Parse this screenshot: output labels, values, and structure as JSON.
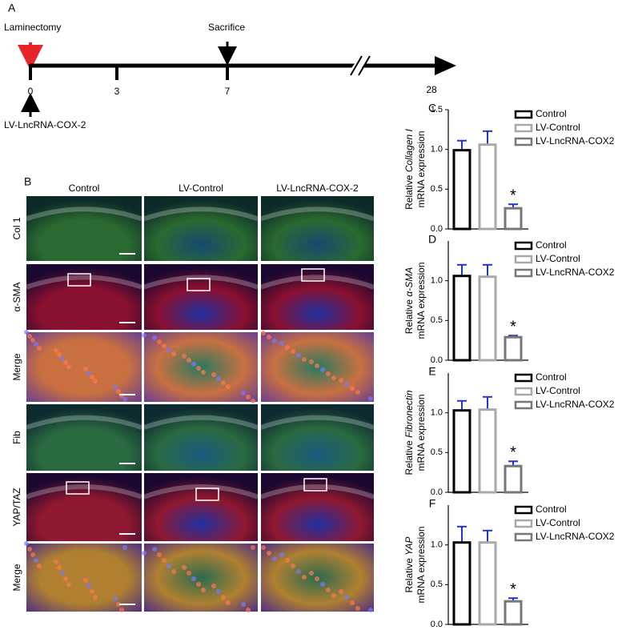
{
  "panel_a": {
    "label": "A",
    "laminectomy": "Laminectomy",
    "sacrifice": "Sacrifice",
    "treatment": "LV-LncRNA-COX-2",
    "timepoints": [
      "0",
      "3",
      "7",
      "28"
    ]
  },
  "panel_b": {
    "label": "B",
    "columns": [
      "Control",
      "LV-Control",
      "LV-LncRNA-COX-2"
    ],
    "rows": [
      {
        "text": "Col 1",
        "color": "#2fb52f"
      },
      {
        "text": "α-SMA",
        "color": "#e8242b"
      },
      {
        "text": "Merge",
        "color": "#f0b400"
      },
      {
        "text": "Fib",
        "color": "#2fb52f"
      },
      {
        "text": "YAP/TAZ",
        "color": "#e8242b"
      },
      {
        "text": "Merge",
        "color": "#f0b400"
      }
    ]
  },
  "chart_data": [
    {
      "type": "bar",
      "label": "C",
      "ylabel": {
        "prefix": "Relative",
        "gene": "Collagen I",
        "suffix": "mRNA expression"
      },
      "ylim": [
        0,
        1.5
      ],
      "yticks": [
        {
          "value": 0,
          "label": "0.0"
        },
        0.5,
        {
          "value": 1,
          "label": "1.0"
        },
        1.5
      ],
      "annotation": "*",
      "series": [
        {
          "name": "Control",
          "color": "#000000",
          "values": [
            0.99
          ],
          "errors": [
            0.12
          ]
        },
        {
          "name": "LV-Control",
          "color": "#a8a8a8",
          "values": [
            1.06
          ],
          "errors": [
            0.17
          ]
        },
        {
          "name": "LV-LncRNA-COX2",
          "color": "#777777",
          "values": [
            0.26
          ],
          "errors": [
            0.05
          ]
        }
      ]
    },
    {
      "type": "bar",
      "label": "D",
      "ylabel": {
        "prefix": "Relative",
        "gene": "α-SMA",
        "suffix": "mRNA expression"
      },
      "ylim": [
        0,
        1.5
      ],
      "yticks": [
        {
          "value": 0,
          "label": "0.0"
        },
        0.5,
        {
          "value": 1,
          "label": "1.0"
        }
      ],
      "annotation": "*",
      "series": [
        {
          "name": "Control",
          "color": "#000000",
          "values": [
            1.06
          ],
          "errors": [
            0.14
          ]
        },
        {
          "name": "LV-Control",
          "color": "#a8a8a8",
          "values": [
            1.05
          ],
          "errors": [
            0.15
          ]
        },
        {
          "name": "LV-LncRNA-COX2",
          "color": "#777777",
          "values": [
            0.29
          ],
          "errors": [
            0.02
          ]
        }
      ]
    },
    {
      "type": "bar",
      "label": "E",
      "ylabel": {
        "prefix": "Relative",
        "gene": "Fibronectin",
        "suffix": "mRNA expression"
      },
      "ylim": [
        0,
        1.5
      ],
      "yticks": [
        {
          "value": 0,
          "label": "0.0"
        },
        0.5,
        {
          "value": 1,
          "label": "1.0"
        }
      ],
      "annotation": "*",
      "series": [
        {
          "name": "Control",
          "color": "#000000",
          "values": [
            1.03
          ],
          "errors": [
            0.12
          ]
        },
        {
          "name": "LV-Control",
          "color": "#a8a8a8",
          "values": [
            1.04
          ],
          "errors": [
            0.16
          ]
        },
        {
          "name": "LV-LncRNA-COX2",
          "color": "#777777",
          "values": [
            0.33
          ],
          "errors": [
            0.06
          ]
        }
      ]
    },
    {
      "type": "bar",
      "label": "F",
      "ylabel": {
        "prefix": "Relative",
        "gene": "YAP",
        "suffix": "mRNA expression"
      },
      "ylim": [
        0,
        1.5
      ],
      "yticks": [
        {
          "value": 0,
          "label": "0.0"
        },
        0.5,
        {
          "value": 1,
          "label": "1.0"
        }
      ],
      "annotation": "*",
      "series": [
        {
          "name": "Control",
          "color": "#000000",
          "values": [
            1.03
          ],
          "errors": [
            0.2
          ]
        },
        {
          "name": "LV-Control",
          "color": "#a8a8a8",
          "values": [
            1.03
          ],
          "errors": [
            0.15
          ]
        },
        {
          "name": "LV-LncRNA-COX2",
          "color": "#777777",
          "values": [
            0.29
          ],
          "errors": [
            0.04
          ]
        }
      ]
    }
  ]
}
